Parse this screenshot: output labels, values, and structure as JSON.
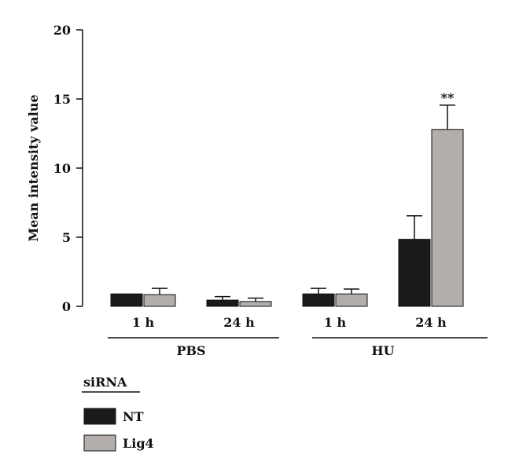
{
  "chart_data": {
    "type": "bar",
    "ylabel": "Mean intensity value",
    "ylim": [
      0,
      20
    ],
    "yticks": [
      0,
      5,
      10,
      15,
      20
    ],
    "categories": [
      "1 h",
      "24 h",
      "1 h",
      "24 h"
    ],
    "groups": [
      {
        "label": "PBS",
        "categories": [
          0,
          1
        ]
      },
      {
        "label": "HU",
        "categories": [
          2,
          3
        ]
      }
    ],
    "series": [
      {
        "name": "NT",
        "color": "#1a1a1a",
        "values": [
          0.9,
          0.45,
          0.9,
          4.85
        ],
        "errors": [
          0.0,
          0.25,
          0.4,
          1.7
        ]
      },
      {
        "name": "Lig4",
        "color": "#b3aeac",
        "values": [
          0.85,
          0.35,
          0.9,
          12.8
        ],
        "errors": [
          0.45,
          0.25,
          0.35,
          1.75
        ]
      }
    ],
    "annotations": [
      {
        "series": 1,
        "category": 3,
        "text": "**"
      }
    ],
    "legend": {
      "title": "siRNA",
      "placement": "bottom-left"
    }
  }
}
